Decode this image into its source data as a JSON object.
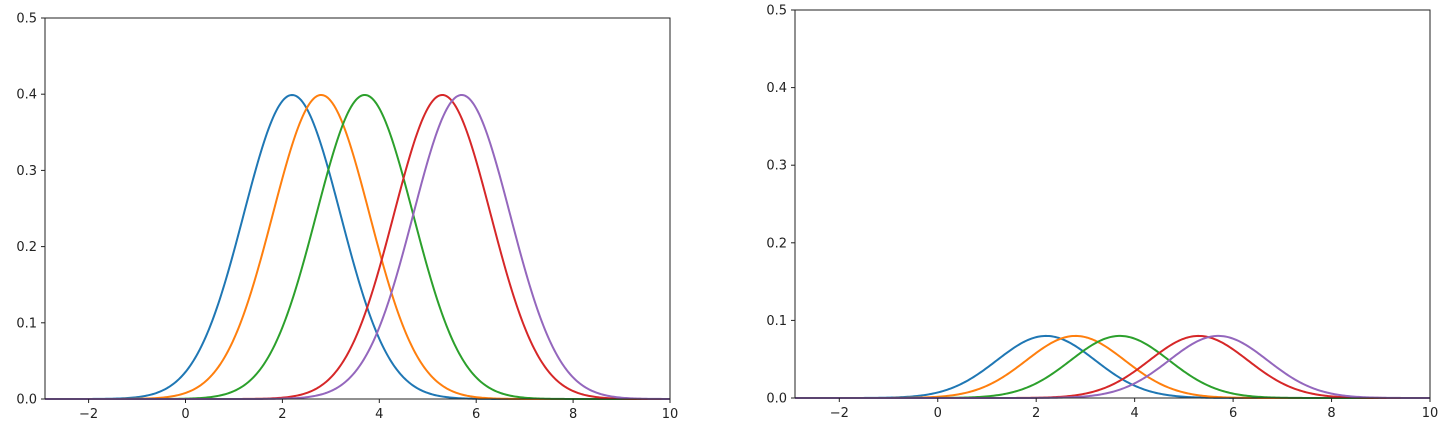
{
  "chart_data": [
    {
      "type": "line",
      "title": "",
      "xlabel": "",
      "ylabel": "",
      "xlim": [
        -2.9,
        10
      ],
      "ylim": [
        0,
        0.5
      ],
      "xticks": [
        -2,
        0,
        2,
        4,
        6,
        8,
        10
      ],
      "yticks": [
        0.0,
        0.1,
        0.2,
        0.3,
        0.4,
        0.5
      ],
      "xtick_labels": [
        "−2",
        "0",
        "2",
        "4",
        "6",
        "8",
        "10"
      ],
      "ytick_labels": [
        "0.0",
        "0.1",
        "0.2",
        "0.3",
        "0.4",
        "0.5"
      ],
      "grid": false,
      "series": [
        {
          "color": "#1f77b4",
          "mean": 2.2,
          "sd": 1.0,
          "peak": 0.399
        },
        {
          "color": "#ff7f0e",
          "mean": 2.8,
          "sd": 1.0,
          "peak": 0.399
        },
        {
          "color": "#2ca02c",
          "mean": 3.7,
          "sd": 1.0,
          "peak": 0.399
        },
        {
          "color": "#d62728",
          "mean": 5.3,
          "sd": 1.0,
          "peak": 0.399
        },
        {
          "color": "#9467bd",
          "mean": 5.7,
          "sd": 1.0,
          "peak": 0.399
        }
      ]
    },
    {
      "type": "line",
      "title": "",
      "xlabel": "",
      "ylabel": "",
      "xlim": [
        -2.9,
        10
      ],
      "ylim": [
        0,
        0.5
      ],
      "xticks": [
        -2,
        0,
        2,
        4,
        6,
        8,
        10
      ],
      "yticks": [
        0.0,
        0.1,
        0.2,
        0.3,
        0.4,
        0.5
      ],
      "xtick_labels": [
        "−2",
        "0",
        "2",
        "4",
        "6",
        "8",
        "10"
      ],
      "ytick_labels": [
        "0.0",
        "0.1",
        "0.2",
        "0.3",
        "0.4",
        "0.5"
      ],
      "grid": false,
      "series": [
        {
          "color": "#1f77b4",
          "mean": 2.2,
          "sd": 1.0,
          "peak": 0.08
        },
        {
          "color": "#ff7f0e",
          "mean": 2.8,
          "sd": 1.0,
          "peak": 0.08
        },
        {
          "color": "#2ca02c",
          "mean": 3.7,
          "sd": 1.0,
          "peak": 0.08
        },
        {
          "color": "#d62728",
          "mean": 5.3,
          "sd": 1.0,
          "peak": 0.08
        },
        {
          "color": "#9467bd",
          "mean": 5.7,
          "sd": 1.0,
          "peak": 0.08
        }
      ]
    }
  ]
}
